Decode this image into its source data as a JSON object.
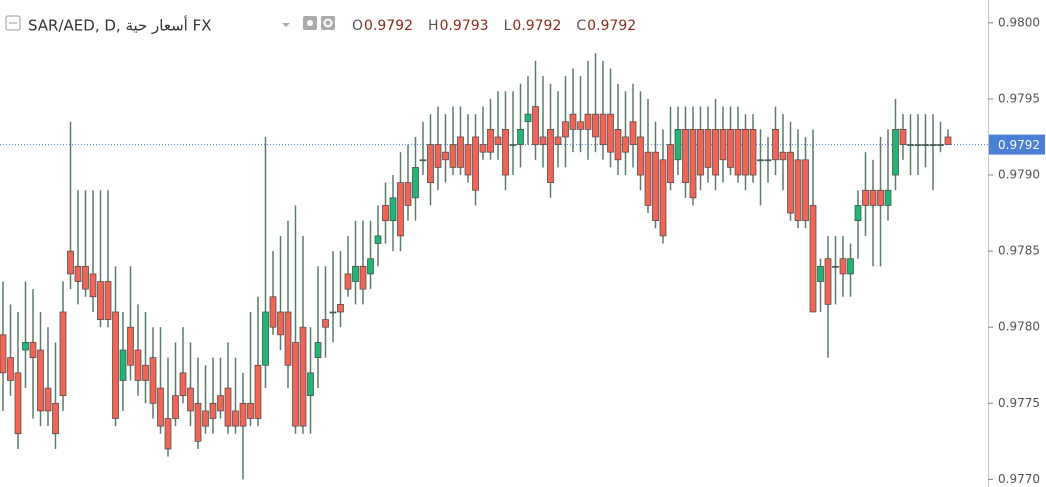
{
  "chart_data": {
    "type": "candlestick",
    "title": "SAR/AED, D, أسعار حية FX",
    "ohlc": [
      {
        "label": "O",
        "value": 0.9792
      },
      {
        "label": "H",
        "value": 0.9793
      },
      {
        "label": "L",
        "value": 0.9792
      },
      {
        "label": "C",
        "value": 0.9792
      }
    ],
    "last_price": 0.9792,
    "ylim": [
      0.97695,
      0.98015
    ],
    "yticks": [
      {
        "value": 0.98,
        "label": "0.9800"
      },
      0.9795,
      {
        "value": 0.979,
        "label": "0.9790"
      },
      0.9785,
      {
        "value": 0.978,
        "label": "0.9780"
      },
      0.9775,
      {
        "value": 0.977,
        "label": "0.9770"
      }
    ],
    "up_color": "#22b573",
    "down_color": "#f06656",
    "wick_color": "#5b7c68",
    "price_line_color": "#4a7fd6",
    "open": [
      0.97795,
      0.9778,
      0.9777,
      0.97785,
      0.9779,
      0.97785,
      0.9776,
      0.9775,
      0.9781,
      0.9785,
      0.9784,
      0.9784,
      0.97835,
      0.9783,
      0.9783,
      0.9781,
      0.97765,
      0.978,
      0.97785,
      0.97775,
      0.9778,
      0.9776,
      0.9774,
      0.97755,
      0.9777,
      0.9776,
      0.9775,
      0.97745,
      0.9775,
      0.97755,
      0.9776,
      0.97745,
      0.9775,
      0.9775,
      0.97775,
      0.97775,
      0.9782,
      0.9781,
      0.9781,
      0.9779,
      0.978,
      0.97755,
      0.9778,
      0.97805,
      0.9781,
      0.97815,
      0.97835,
      0.9783,
      0.9784,
      0.97835,
      0.97855,
      0.9788,
      0.9787,
      0.97895,
      0.97895,
      0.97885,
      0.9791,
      0.9792,
      0.9792,
      0.97915,
      0.9792,
      0.97925,
      0.9792,
      0.97925,
      0.9792,
      0.9793,
      0.97925,
      0.9793,
      0.9792,
      0.9792,
      0.97935,
      0.97945,
      0.97925,
      0.9793,
      0.97925,
      0.97935,
      0.9794,
      0.97935,
      0.9794,
      0.9794,
      0.9794,
      0.9794,
      0.9793,
      0.97925,
      0.97935,
      0.97925,
      0.97915,
      0.97915,
      0.9791,
      0.9792,
      0.9791,
      0.9793,
      0.9793,
      0.9793,
      0.9793,
      0.9793,
      0.9793,
      0.9793,
      0.9793,
      0.9793,
      0.9793,
      0.9791,
      0.9791,
      0.9793,
      0.97915,
      0.97915,
      0.9791,
      0.9791,
      0.9788,
      0.9783,
      0.97845,
      0.9784,
      0.97845,
      0.97835,
      0.9787,
      0.9789,
      0.9789,
      0.9789,
      0.9788,
      0.979,
      0.9793,
      0.9792,
      0.9792,
      0.9792,
      0.9792,
      0.9792,
      0.97925
    ],
    "high": [
      0.9783,
      0.97815,
      0.9781,
      0.9783,
      0.97825,
      0.9781,
      0.978,
      0.9779,
      0.9783,
      0.97935,
      0.9789,
      0.9789,
      0.9789,
      0.9789,
      0.9789,
      0.9784,
      0.9781,
      0.9784,
      0.97815,
      0.9781,
      0.978,
      0.978,
      0.9778,
      0.9779,
      0.978,
      0.9779,
      0.9778,
      0.97775,
      0.9778,
      0.9778,
      0.9779,
      0.9778,
      0.9777,
      0.9781,
      0.9782,
      0.97925,
      0.9785,
      0.9786,
      0.9787,
      0.9788,
      0.9786,
      0.978,
      0.9784,
      0.9784,
      0.9785,
      0.9785,
      0.9786,
      0.9787,
      0.9787,
      0.9787,
      0.9788,
      0.97895,
      0.979,
      0.97915,
      0.9792,
      0.97925,
      0.97935,
      0.9794,
      0.97945,
      0.9794,
      0.97945,
      0.97945,
      0.9794,
      0.9794,
      0.97945,
      0.9795,
      0.97955,
      0.97955,
      0.97955,
      0.9796,
      0.97965,
      0.97975,
      0.97965,
      0.9796,
      0.97955,
      0.97965,
      0.9797,
      0.97965,
      0.97975,
      0.9798,
      0.97975,
      0.9797,
      0.9796,
      0.97955,
      0.9796,
      0.97955,
      0.9795,
      0.97935,
      0.9793,
      0.97945,
      0.97945,
      0.97945,
      0.97945,
      0.97945,
      0.97945,
      0.9795,
      0.97945,
      0.97945,
      0.97945,
      0.9794,
      0.9794,
      0.9793,
      0.97925,
      0.97945,
      0.9794,
      0.97935,
      0.9793,
      0.97925,
      0.9793,
      0.97845,
      0.9786,
      0.9786,
      0.9786,
      0.97855,
      0.9789,
      0.97915,
      0.9791,
      0.97925,
      0.9793,
      0.9795,
      0.9794,
      0.9794,
      0.9794,
      0.9794,
      0.9794,
      0.97935,
      0.9793
    ],
    "low": [
      0.97745,
      0.97755,
      0.9772,
      0.9776,
      0.9774,
      0.97735,
      0.97735,
      0.9772,
      0.97745,
      0.97825,
      0.97815,
      0.9782,
      0.9781,
      0.978,
      0.978,
      0.97735,
      0.97745,
      0.97765,
      0.97755,
      0.9775,
      0.9774,
      0.9773,
      0.97715,
      0.97735,
      0.9775,
      0.97735,
      0.9772,
      0.9773,
      0.9773,
      0.9774,
      0.9773,
      0.9773,
      0.977,
      0.97735,
      0.97735,
      0.9776,
      0.97795,
      0.97785,
      0.9776,
      0.9773,
      0.9773,
      0.9773,
      0.9776,
      0.9778,
      0.9779,
      0.978,
      0.9782,
      0.97815,
      0.97815,
      0.97825,
      0.9784,
      0.97855,
      0.9785,
      0.9785,
      0.9787,
      0.9787,
      0.979,
      0.9788,
      0.9789,
      0.97895,
      0.979,
      0.979,
      0.97895,
      0.9788,
      0.9791,
      0.9791,
      0.9791,
      0.9789,
      0.979,
      0.97905,
      0.9792,
      0.9791,
      0.97905,
      0.97885,
      0.97905,
      0.97905,
      0.97915,
      0.97915,
      0.9791,
      0.97915,
      0.9791,
      0.97905,
      0.979,
      0.979,
      0.97905,
      0.9789,
      0.97875,
      0.97865,
      0.97855,
      0.9789,
      0.979,
      0.97885,
      0.9788,
      0.9789,
      0.97895,
      0.9789,
      0.97895,
      0.979,
      0.97895,
      0.9789,
      0.97895,
      0.9788,
      0.97895,
      0.979,
      0.9789,
      0.9787,
      0.97865,
      0.97865,
      0.9781,
      0.9781,
      0.9778,
      0.97815,
      0.9782,
      0.9782,
      0.97845,
      0.9786,
      0.9784,
      0.9784,
      0.9787,
      0.9789,
      0.9791,
      0.979,
      0.979,
      0.97905,
      0.9789,
      0.97915,
      0.9792
    ],
    "close": [
      0.9777,
      0.97765,
      0.9773,
      0.9779,
      0.9778,
      0.97745,
      0.97745,
      0.9773,
      0.97755,
      0.97835,
      0.9783,
      0.97825,
      0.9782,
      0.97805,
      0.97805,
      0.9774,
      0.97785,
      0.97775,
      0.97765,
      0.97765,
      0.9775,
      0.97735,
      0.9772,
      0.9774,
      0.97755,
      0.97745,
      0.97725,
      0.97735,
      0.9774,
      0.97745,
      0.97735,
      0.97735,
      0.97735,
      0.9774,
      0.9774,
      0.9781,
      0.978,
      0.97795,
      0.97775,
      0.97735,
      0.97735,
      0.9777,
      0.9779,
      0.978,
      0.9781,
      0.9781,
      0.97825,
      0.9784,
      0.97825,
      0.97845,
      0.9786,
      0.9787,
      0.97885,
      0.9786,
      0.9788,
      0.97905,
      0.9791,
      0.97895,
      0.97905,
      0.9791,
      0.97905,
      0.97905,
      0.979,
      0.9789,
      0.97915,
      0.97915,
      0.9792,
      0.979,
      0.9792,
      0.9793,
      0.9794,
      0.9792,
      0.9792,
      0.97895,
      0.9792,
      0.97925,
      0.9793,
      0.9793,
      0.9793,
      0.97925,
      0.9792,
      0.97915,
      0.9791,
      0.97915,
      0.9792,
      0.979,
      0.9788,
      0.9787,
      0.9786,
      0.97895,
      0.9793,
      0.97895,
      0.97885,
      0.979,
      0.97905,
      0.979,
      0.9791,
      0.97905,
      0.979,
      0.979,
      0.979,
      0.9791,
      0.9791,
      0.9791,
      0.9791,
      0.97875,
      0.9787,
      0.9787,
      0.9781,
      0.9784,
      0.97815,
      0.9784,
      0.97835,
      0.97845,
      0.9788,
      0.9788,
      0.9788,
      0.9788,
      0.9789,
      0.9793,
      0.9792,
      0.9792,
      0.9792,
      0.9792,
      0.9792,
      0.9792,
      0.9792
    ]
  }
}
